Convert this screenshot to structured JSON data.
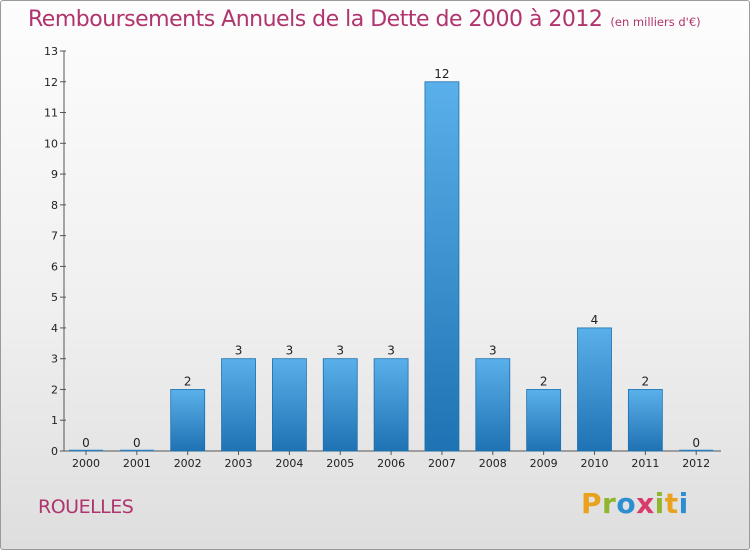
{
  "header": {
    "title": "Remboursements Annuels de la Dette de 2000 à 2012",
    "unit": "(en milliers d'€)"
  },
  "footer": {
    "commune": "ROUELLES",
    "logo_letters": [
      "P",
      "r",
      "o",
      "x",
      "i",
      "t",
      "i"
    ],
    "logo_colors": [
      "#e8a21d",
      "#8fb62e",
      "#2d8ed1",
      "#d93b6a",
      "#8fb62e",
      "#e8a21d",
      "#2d8ed1"
    ]
  },
  "colors": {
    "text_accent": "#b0346e",
    "bar_light": "#5ab0ea",
    "bar_dark": "#1f72b3"
  },
  "chart_data": {
    "type": "bar",
    "title": "Remboursements Annuels de la Dette de 2000 à 2012",
    "categories": [
      "2000",
      "2001",
      "2002",
      "2003",
      "2004",
      "2005",
      "2006",
      "2007",
      "2008",
      "2009",
      "2010",
      "2011",
      "2012"
    ],
    "values": [
      0,
      0,
      2,
      3,
      3,
      3,
      3,
      12,
      3,
      2,
      4,
      2,
      0
    ],
    "value_labels": [
      "0",
      "0",
      "2",
      "3",
      "3",
      "3",
      "3",
      "12",
      "3",
      "2",
      "4",
      "2",
      "0"
    ],
    "ylim": [
      0,
      13
    ],
    "yticks": [
      0,
      1,
      2,
      3,
      4,
      5,
      6,
      7,
      8,
      9,
      10,
      11,
      12,
      13
    ],
    "grid": false,
    "legend": "none"
  }
}
